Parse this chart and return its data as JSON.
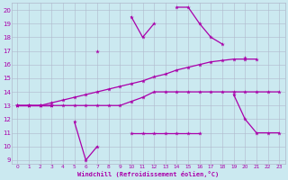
{
  "xlabel": "Windchill (Refroidissement éolien,°C)",
  "background_color": "#cbe9f0",
  "grid_color": "#b0b8cc",
  "line_color": "#aa00aa",
  "upper": [
    13,
    13,
    13,
    13,
    null,
    null,
    null,
    17,
    null,
    null,
    19.5,
    18,
    19,
    null,
    20.2,
    20.2,
    19,
    18,
    17.5,
    null,
    16.5,
    null,
    null,
    null
  ],
  "middle": [
    13,
    13,
    13,
    13.2,
    13.4,
    13.6,
    13.8,
    14.0,
    14.2,
    14.4,
    14.6,
    14.8,
    15.1,
    15.3,
    15.6,
    15.8,
    16.0,
    16.2,
    16.3,
    16.4,
    16.4,
    16.4,
    null,
    null
  ],
  "lower": [
    13,
    13,
    13,
    13,
    null,
    11.8,
    9,
    10,
    null,
    null,
    11,
    11,
    11,
    11,
    11,
    11,
    11,
    null,
    null,
    13.8,
    12,
    11,
    11,
    11
  ],
  "flat": [
    13,
    13,
    13,
    13,
    13,
    13,
    13,
    13,
    13,
    13,
    13.3,
    13.6,
    14,
    14,
    14,
    14,
    14,
    14,
    14,
    14,
    14,
    14,
    14,
    14
  ],
  "ylim_min": 9,
  "ylim_max": 20,
  "xlim_min": 0,
  "xlim_max": 23
}
